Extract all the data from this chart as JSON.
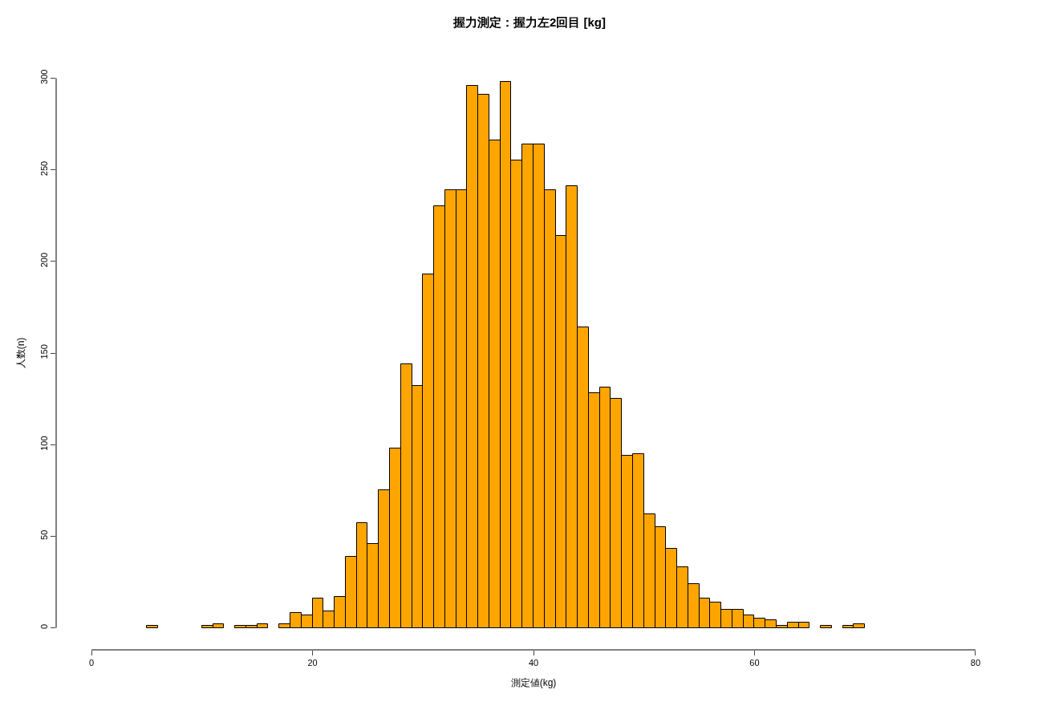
{
  "chart_data": {
    "type": "histogram",
    "title": "握力測定：握力左2回目 [kg]",
    "xlabel": "測定値(kg)",
    "ylabel": "人数(n)",
    "bins": [
      5,
      6,
      7,
      8,
      9,
      10,
      11,
      12,
      13,
      14,
      15,
      16,
      17,
      18,
      19,
      20,
      21,
      22,
      23,
      24,
      25,
      26,
      27,
      28,
      29,
      30,
      31,
      32,
      33,
      34,
      35,
      36,
      37,
      38,
      39,
      40,
      41,
      42,
      43,
      44,
      45,
      46,
      47,
      48,
      49,
      50,
      51,
      52,
      53,
      54,
      55,
      56,
      57,
      58,
      59,
      60,
      61,
      62,
      63,
      64,
      65,
      66,
      67,
      68,
      69,
      70
    ],
    "values": [
      1,
      0,
      0,
      0,
      0,
      1,
      2,
      0,
      1,
      1,
      2,
      0,
      2,
      8,
      7,
      16,
      9,
      17,
      39,
      57,
      46,
      75,
      98,
      144,
      132,
      193,
      230,
      239,
      239,
      296,
      291,
      266,
      298,
      255,
      264,
      264,
      239,
      214,
      241,
      164,
      128,
      131,
      125,
      94,
      95,
      62,
      55,
      43,
      33,
      24,
      16,
      14,
      10,
      10,
      7,
      5,
      4,
      1,
      3,
      3,
      0,
      1,
      0,
      1,
      2
    ],
    "color": "#ffa500",
    "xlim": [
      0,
      80
    ],
    "xticks": [
      0,
      20,
      40,
      60,
      80
    ],
    "ylim": [
      0,
      300
    ],
    "yticks": [
      0,
      50,
      100,
      150,
      200,
      250,
      300
    ]
  }
}
